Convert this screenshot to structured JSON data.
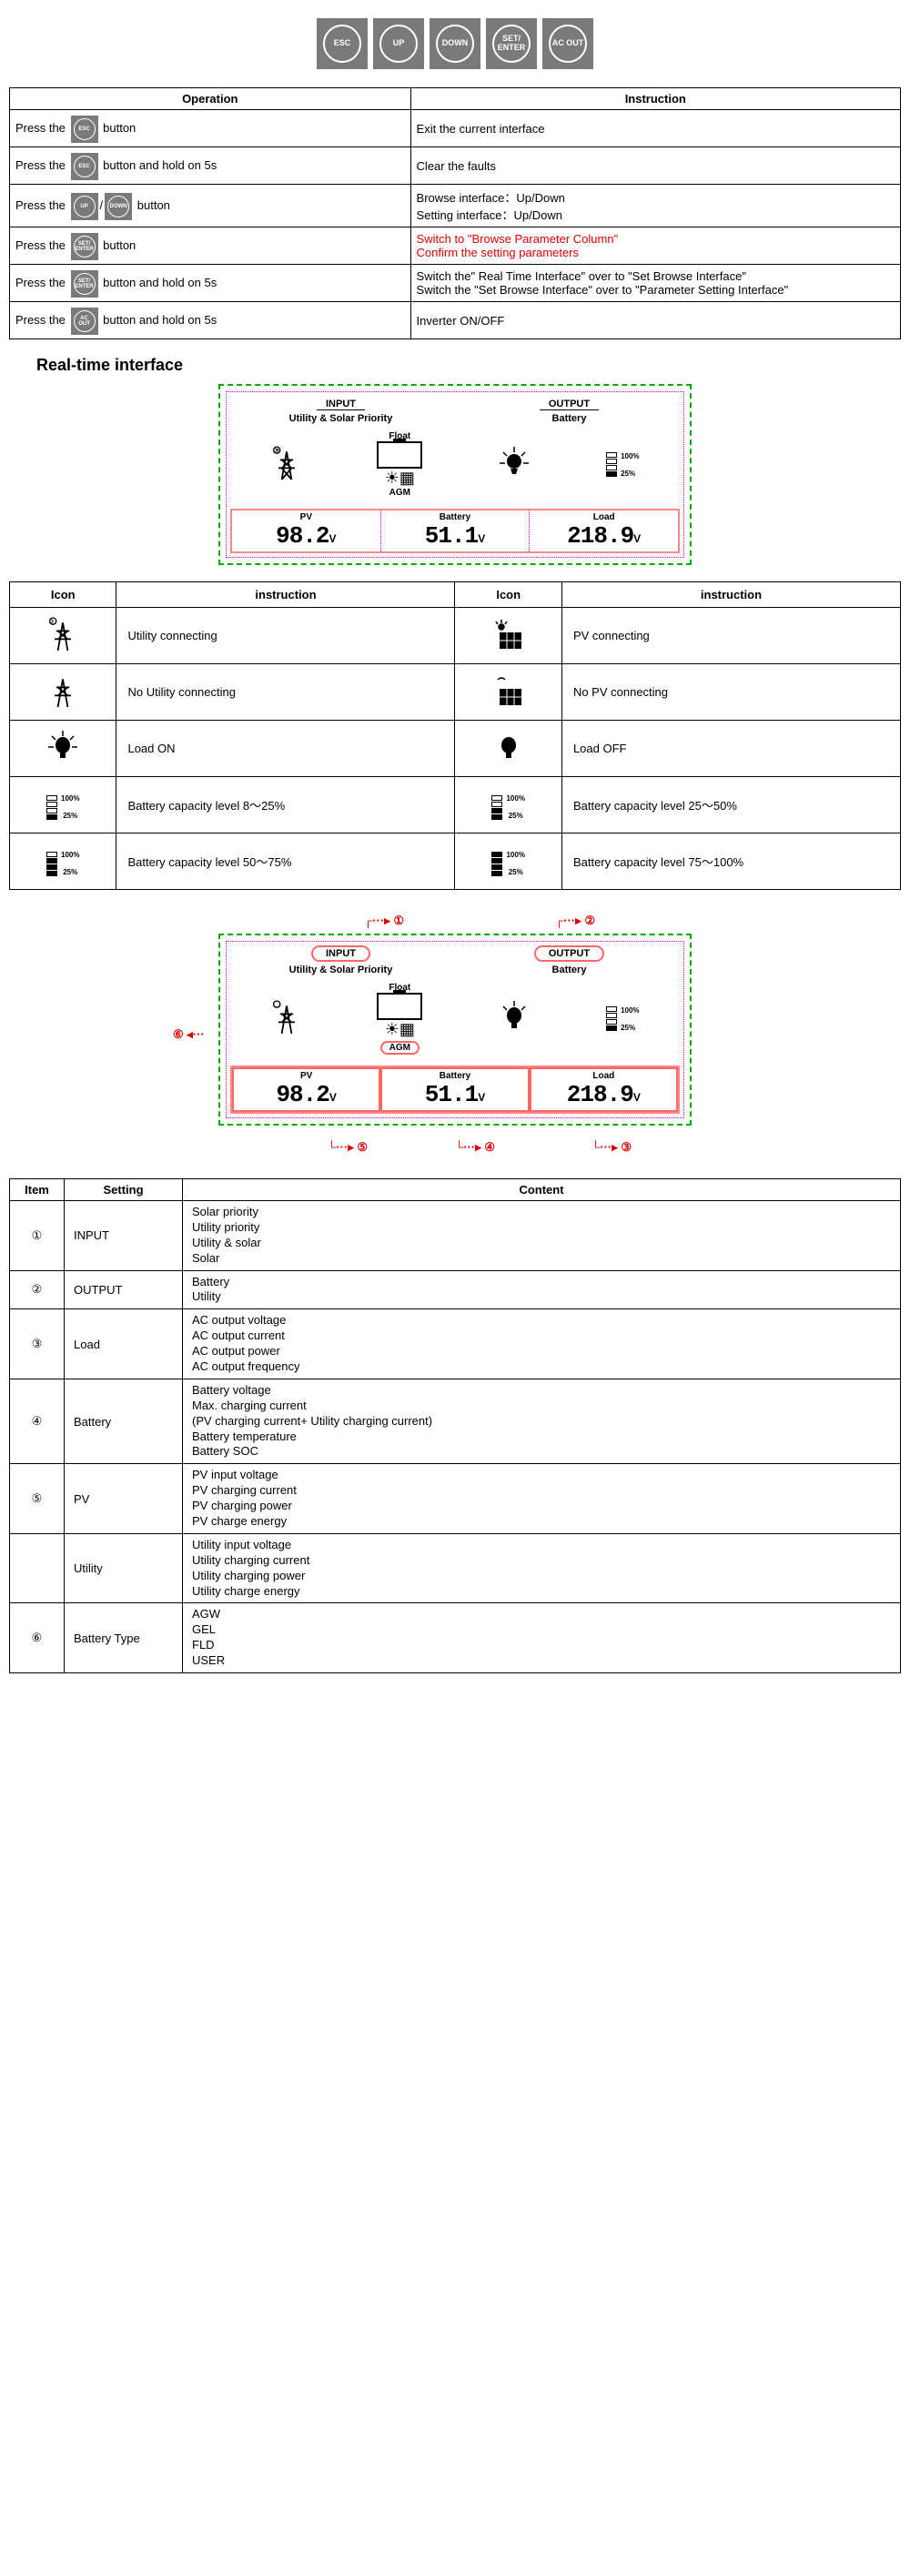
{
  "buttons": {
    "esc": "ESC",
    "up": "UP",
    "down": "DOWN",
    "set": "SET/\nENTER",
    "acout": "AC OUT"
  },
  "op_table": {
    "headers": [
      "Operation",
      "Instruction"
    ],
    "rows": [
      {
        "op_pre": "Press the",
        "btn": [
          "ESC"
        ],
        "op_post": "button",
        "instr": "Exit the current interface"
      },
      {
        "op_pre": "Press the",
        "btn": [
          "ESC"
        ],
        "op_post": "button and hold on 5s",
        "instr": "Clear the faults"
      },
      {
        "op_pre": "Press the",
        "btn": [
          "UP",
          "DOWN"
        ],
        "sep": "/",
        "op_post": "button",
        "instr": "Browse interface：Up/Down\nSetting interface：Up/Down"
      },
      {
        "op_pre": "Press the",
        "btn": [
          "SET/\nENTER"
        ],
        "op_post": "button",
        "instr": "Switch to \"Browse Parameter Column\"\nConfirm the setting parameters",
        "red": true
      },
      {
        "op_pre": "Press the",
        "btn": [
          "SET/\nENTER"
        ],
        "op_post": "button and hold on 5s",
        "instr": "Switch the\" Real Time Interface\" over to \"Set Browse Interface\"\nSwitch the \"Set Browse Interface\" over to \"Parameter Setting Interface\""
      },
      {
        "op_pre": "Press the",
        "btn": [
          "AC OUT"
        ],
        "op_post": "button and hold on 5s",
        "instr": "Inverter ON/OFF"
      }
    ]
  },
  "section1_title": "Real-time interface",
  "lcd": {
    "input_label": "INPUT",
    "input_sub": "Utility & Solar Priority",
    "output_label": "OUTPUT",
    "output_sub": "Battery",
    "float": "Float",
    "agm": "AGM",
    "batt_100": "100%",
    "batt_25": "25%",
    "values": [
      {
        "label": "PV",
        "num": "98.2",
        "unit": "V"
      },
      {
        "label": "Battery",
        "num": "51.1",
        "unit": "V"
      },
      {
        "label": "Load",
        "num": "218.9",
        "unit": "V"
      }
    ]
  },
  "icon_table": {
    "headers": [
      "Icon",
      "instruction",
      "Icon",
      "instruction"
    ],
    "rows": [
      {
        "l": "Utility connecting",
        "r": "PV connecting"
      },
      {
        "l": "No Utility connecting",
        "r": "No PV connecting"
      },
      {
        "l": "Load ON",
        "r": "Load OFF"
      },
      {
        "l": "Battery capacity level 8～25%",
        "r": "Battery capacity level 25～50%"
      },
      {
        "l": "Battery capacity level 50～75%",
        "r": "Battery capacity level 75～100%"
      }
    ]
  },
  "callouts": {
    "1": "①",
    "2": "②",
    "3": "③",
    "4": "④",
    "5": "⑤",
    "6": "⑥"
  },
  "settings_table": {
    "headers": [
      "Item",
      "Setting",
      "Content"
    ],
    "rows": [
      {
        "item": "①",
        "setting": "INPUT",
        "content": [
          "Solar priority",
          "Utility priority",
          "Utility & solar",
          "Solar"
        ]
      },
      {
        "item": "②",
        "setting": "OUTPUT",
        "content": [
          "Battery",
          "Utility"
        ]
      },
      {
        "item": "③",
        "setting": "Load",
        "content": [
          "AC output voltage",
          "AC output current",
          "AC output power",
          "AC output frequency"
        ]
      },
      {
        "item": "④",
        "setting": "Battery",
        "content": [
          "Battery voltage",
          "Max. charging current",
          "(PV charging current+ Utility charging current)",
          "Battery temperature",
          "Battery SOC"
        ]
      },
      {
        "item": "⑤",
        "setting": "PV",
        "content": [
          "PV input voltage",
          "PV charging current",
          "PV charging power",
          "PV charge energy"
        ]
      },
      {
        "item": "",
        "setting": "Utility",
        "content": [
          "Utility input voltage",
          "Utility charging current",
          "Utility charging power",
          "Utility charge energy"
        ]
      },
      {
        "item": "⑥",
        "setting": "Battery Type",
        "content": [
          "AGW",
          "GEL",
          "FLD",
          "USER"
        ]
      }
    ]
  },
  "colors": {
    "red_text": "#d00000",
    "btn_bg": "#7a7a7a",
    "lcd_border": "#00aa00",
    "lcd_inner": "#cc00cc",
    "highlight": "#ff6666"
  }
}
